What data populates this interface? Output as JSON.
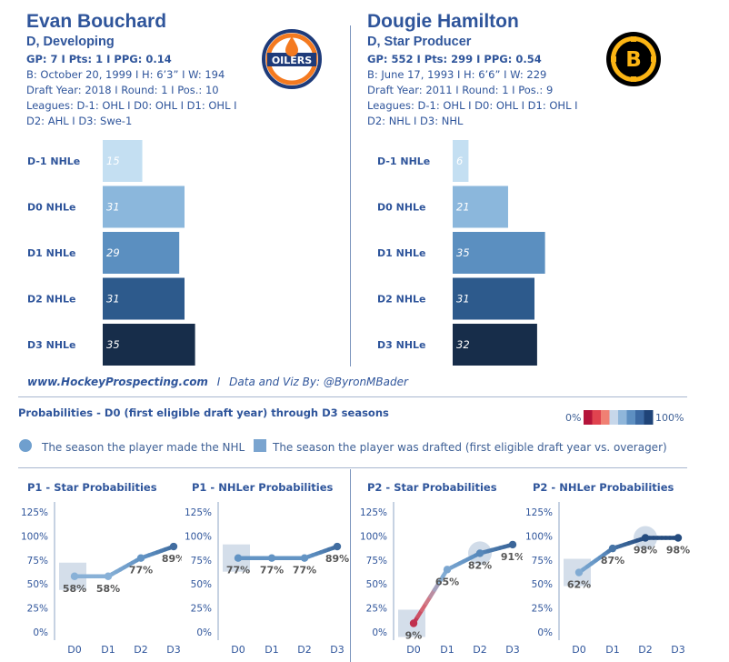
{
  "players": [
    {
      "name": "Evan Bouchard",
      "subtitle": "D, Developing",
      "stats": "GP: 7 I Pts: 1 I PPG: 0.14",
      "bio": "B: October 20, 1999 I H: 6’3” I W: 194",
      "draft": "Draft Year: 2018 I Round: 1 I Pos.: 10",
      "leagues1": "Leagues: D-1: OHL I D0: OHL I D1: OHL I",
      "leagues2": "D2: AHL I D3: Swe-1",
      "logo_text": "OILERS",
      "logo_colors": {
        "outer": "#f47a20",
        "ring": "#1e3b7a",
        "drop": "#f47a20"
      }
    },
    {
      "name": "Dougie Hamilton",
      "subtitle": "D, Star Producer",
      "stats": "GP: 552 I Pts: 299 I PPG: 0.54",
      "bio": "B: June 17, 1993 I H: 6’6” I W: 229",
      "draft": "Draft Year: 2011 I Round: 1 I Pos.: 9",
      "leagues1": "Leagues: D-1: OHL I D0: OHL I D1: OHL I",
      "leagues2": "D2: NHL I D3: NHL",
      "logo_text": "B",
      "logo_colors": {
        "outer": "#000000",
        "ring": "#fcb514"
      }
    }
  ],
  "footer": {
    "site": "www.HockeyProspecting.com",
    "sep": "I",
    "credit": "Data and Viz By: @ByronMBader"
  },
  "probabilities": {
    "title": "Probabilities - D0 (first eligible draft year) through D3 seasons",
    "scale_min": "0%",
    "scale_max": "100%",
    "scale_colors": [
      "#b5143a",
      "#e0434f",
      "#f08073",
      "#c7d7ea",
      "#8fb6da",
      "#5d8fc1",
      "#3c6aa3",
      "#1f4478"
    ],
    "legend_made_nhl": "The season the player made the NHL",
    "legend_drafted": "The season the player was drafted (first eligible draft year vs. overager)"
  },
  "chart_data": [
    {
      "type": "bar",
      "orientation": "horizontal",
      "player": "Evan Bouchard",
      "categories": [
        "D-1 NHLe",
        "D0 NHLe",
        "D1 NHLe",
        "D2 NHLe",
        "D3 NHLe"
      ],
      "values": [
        15,
        31,
        29,
        31,
        35
      ],
      "colors": [
        "#c4dff2",
        "#8bb7dc",
        "#5b8fc0",
        "#2d5a8c",
        "#172d4a"
      ],
      "xlim": [
        0,
        60
      ]
    },
    {
      "type": "bar",
      "orientation": "horizontal",
      "player": "Dougie Hamilton",
      "categories": [
        "D-1 NHLe",
        "D0 NHLe",
        "D1 NHLe",
        "D2 NHLe",
        "D3 NHLe"
      ],
      "values": [
        6,
        21,
        35,
        31,
        32
      ],
      "colors": [
        "#c4dff2",
        "#8bb7dc",
        "#5b8fc0",
        "#2d5a8c",
        "#172d4a"
      ],
      "xlim": [
        0,
        60
      ]
    },
    {
      "type": "line",
      "title": "P1 - Star Probabilities",
      "x": [
        "D0",
        "D1",
        "D2",
        "D3"
      ],
      "values": [
        58,
        58,
        77,
        89
      ],
      "labels": [
        "58%",
        "58%",
        "77%",
        "89%"
      ],
      "yticks": [
        "0%",
        "25%",
        "50%",
        "75%",
        "100%",
        "125%"
      ],
      "ylim": [
        0,
        125
      ],
      "drafted_index": 0,
      "nhl_index": null
    },
    {
      "type": "line",
      "title": "P1 - NHLer Probabilities",
      "x": [
        "D0",
        "D1",
        "D2",
        "D3"
      ],
      "values": [
        77,
        77,
        77,
        89
      ],
      "labels": [
        "77%",
        "77%",
        "77%",
        "89%"
      ],
      "yticks": [
        "0%",
        "25%",
        "50%",
        "75%",
        "100%",
        "125%"
      ],
      "ylim": [
        0,
        125
      ],
      "drafted_index": 0,
      "nhl_index": null
    },
    {
      "type": "line",
      "title": "P2 - Star Probabilities",
      "x": [
        "D0",
        "D1",
        "D2",
        "D3"
      ],
      "values": [
        9,
        65,
        82,
        91
      ],
      "labels": [
        "9%",
        "65%",
        "82%",
        "91%"
      ],
      "yticks": [
        "0%",
        "25%",
        "50%",
        "75%",
        "100%",
        "125%"
      ],
      "ylim": [
        0,
        125
      ],
      "drafted_index": 0,
      "nhl_index": 2
    },
    {
      "type": "line",
      "title": "P2 - NHLer Probabilities",
      "x": [
        "D0",
        "D1",
        "D2",
        "D3"
      ],
      "values": [
        62,
        87,
        98,
        98
      ],
      "labels": [
        "62%",
        "87%",
        "98%",
        "98%"
      ],
      "yticks": [
        "0%",
        "25%",
        "50%",
        "75%",
        "100%",
        "125%"
      ],
      "ylim": [
        0,
        125
      ],
      "drafted_index": 0,
      "nhl_index": 2
    }
  ]
}
